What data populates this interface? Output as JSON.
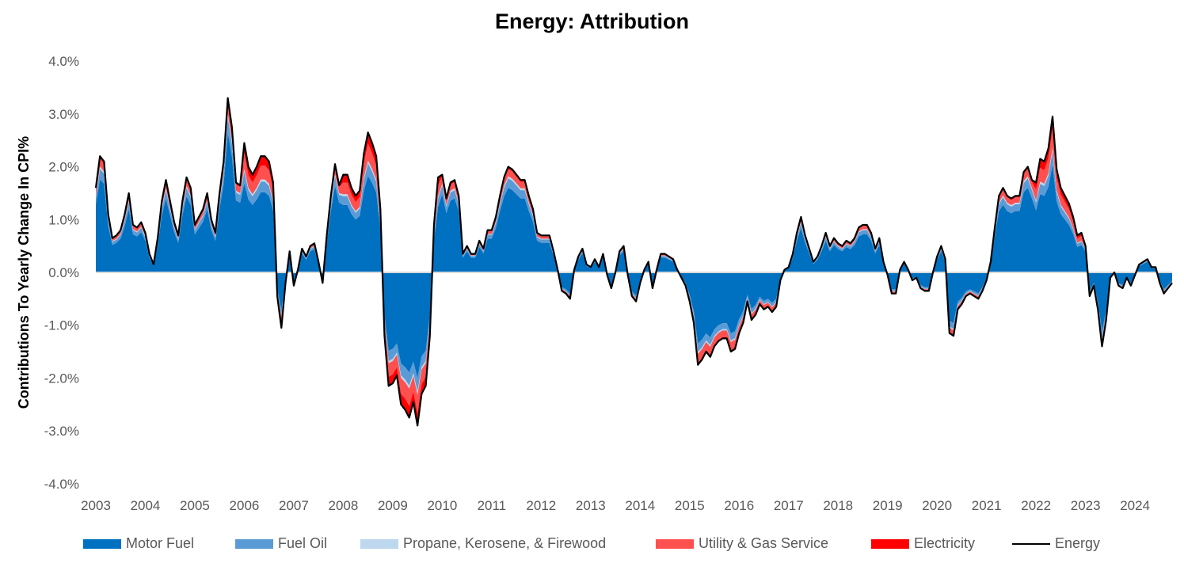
{
  "chart_data": {
    "type": "area",
    "title": "Energy: Attribution",
    "xlabel": "",
    "ylabel": "Contributions To Yearly Change In CPI%",
    "ylim": [
      -0.04,
      0.04
    ],
    "y_tick_labels": [
      "4.0%",
      "3.0%",
      "2.0%",
      "1.0%",
      "0.0%",
      "-1.0%",
      "-2.0%",
      "-3.0%",
      "-4.0%"
    ],
    "y_tick_values": [
      0.04,
      0.03,
      0.02,
      0.01,
      0.0,
      -0.01,
      -0.02,
      -0.03,
      -0.04
    ],
    "x_tick_labels": [
      "2003",
      "2004",
      "2005",
      "2006",
      "2007",
      "2008",
      "2009",
      "2010",
      "2011",
      "2012",
      "2013",
      "2014",
      "2015",
      "2016",
      "2017",
      "2018",
      "2019",
      "2020",
      "2021",
      "2022",
      "2023",
      "2024"
    ],
    "x_range": [
      "2003-01",
      "2024-10"
    ],
    "grid": false,
    "legend_position": "bottom",
    "energy_points": [
      [
        "2003-01",
        1.6
      ],
      [
        "2003-02",
        2.2
      ],
      [
        "2003-03",
        2.1
      ],
      [
        "2003-04",
        1.1
      ],
      [
        "2003-05",
        0.65
      ],
      [
        "2003-06",
        0.7
      ],
      [
        "2003-07",
        0.8
      ],
      [
        "2003-08",
        1.1
      ],
      [
        "2003-09",
        1.5
      ],
      [
        "2003-10",
        0.9
      ],
      [
        "2003-11",
        0.85
      ],
      [
        "2003-12",
        0.95
      ],
      [
        "2004-01",
        0.75
      ],
      [
        "2004-02",
        0.35
      ],
      [
        "2004-03",
        0.15
      ],
      [
        "2004-04",
        0.65
      ],
      [
        "2004-05",
        1.35
      ],
      [
        "2004-06",
        1.75
      ],
      [
        "2004-07",
        1.35
      ],
      [
        "2004-08",
        0.95
      ],
      [
        "2004-09",
        0.7
      ],
      [
        "2004-10",
        1.35
      ],
      [
        "2004-11",
        1.8
      ],
      [
        "2004-12",
        1.6
      ],
      [
        "2005-01",
        0.9
      ],
      [
        "2005-02",
        1.05
      ],
      [
        "2005-03",
        1.2
      ],
      [
        "2005-04",
        1.5
      ],
      [
        "2005-05",
        1.0
      ],
      [
        "2005-06",
        0.75
      ],
      [
        "2005-07",
        1.5
      ],
      [
        "2005-08",
        2.1
      ],
      [
        "2005-09",
        3.3
      ],
      [
        "2005-10",
        2.75
      ],
      [
        "2005-11",
        1.7
      ],
      [
        "2005-12",
        1.65
      ],
      [
        "2006-01",
        2.45
      ],
      [
        "2006-02",
        2.0
      ],
      [
        "2006-03",
        1.85
      ],
      [
        "2006-04",
        2.0
      ],
      [
        "2006-05",
        2.2
      ],
      [
        "2006-06",
        2.2
      ],
      [
        "2006-07",
        2.1
      ],
      [
        "2006-08",
        1.7
      ],
      [
        "2006-09",
        -0.45
      ],
      [
        "2006-10",
        -1.05
      ],
      [
        "2006-11",
        -0.2
      ],
      [
        "2006-12",
        0.4
      ],
      [
        "2007-01",
        -0.25
      ],
      [
        "2007-02",
        0.05
      ],
      [
        "2007-03",
        0.45
      ],
      [
        "2007-04",
        0.3
      ],
      [
        "2007-05",
        0.5
      ],
      [
        "2007-06",
        0.55
      ],
      [
        "2007-07",
        0.2
      ],
      [
        "2007-08",
        -0.2
      ],
      [
        "2007-09",
        0.7
      ],
      [
        "2007-10",
        1.45
      ],
      [
        "2007-11",
        2.05
      ],
      [
        "2007-12",
        1.65
      ],
      [
        "2008-01",
        1.85
      ],
      [
        "2008-02",
        1.85
      ],
      [
        "2008-03",
        1.6
      ],
      [
        "2008-04",
        1.45
      ],
      [
        "2008-05",
        1.55
      ],
      [
        "2008-06",
        2.25
      ],
      [
        "2008-07",
        2.65
      ],
      [
        "2008-08",
        2.45
      ],
      [
        "2008-09",
        2.2
      ],
      [
        "2008-10",
        1.2
      ],
      [
        "2008-11",
        -1.2
      ],
      [
        "2008-12",
        -2.15
      ],
      [
        "2009-01",
        -2.1
      ],
      [
        "2009-02",
        -1.95
      ],
      [
        "2009-03",
        -2.5
      ],
      [
        "2009-04",
        -2.6
      ],
      [
        "2009-05",
        -2.75
      ],
      [
        "2009-06",
        -2.45
      ],
      [
        "2009-07",
        -2.9
      ],
      [
        "2009-08",
        -2.3
      ],
      [
        "2009-09",
        -2.15
      ],
      [
        "2009-10",
        -1.2
      ],
      [
        "2009-11",
        0.9
      ],
      [
        "2009-12",
        1.8
      ],
      [
        "2010-01",
        1.85
      ],
      [
        "2010-02",
        1.4
      ],
      [
        "2010-03",
        1.7
      ],
      [
        "2010-04",
        1.75
      ],
      [
        "2010-05",
        1.45
      ],
      [
        "2010-06",
        0.35
      ],
      [
        "2010-07",
        0.5
      ],
      [
        "2010-08",
        0.35
      ],
      [
        "2010-09",
        0.35
      ],
      [
        "2010-10",
        0.6
      ],
      [
        "2010-11",
        0.45
      ],
      [
        "2010-12",
        0.8
      ],
      [
        "2011-01",
        0.8
      ],
      [
        "2011-02",
        1.05
      ],
      [
        "2011-03",
        1.45
      ],
      [
        "2011-04",
        1.8
      ],
      [
        "2011-05",
        2.0
      ],
      [
        "2011-06",
        1.95
      ],
      [
        "2011-07",
        1.85
      ],
      [
        "2011-08",
        1.75
      ],
      [
        "2011-09",
        1.75
      ],
      [
        "2011-10",
        1.45
      ],
      [
        "2011-11",
        1.2
      ],
      [
        "2011-12",
        0.75
      ],
      [
        "2012-01",
        0.7
      ],
      [
        "2012-02",
        0.7
      ],
      [
        "2012-03",
        0.7
      ],
      [
        "2012-04",
        0.4
      ],
      [
        "2012-05",
        0.05
      ],
      [
        "2012-06",
        -0.35
      ],
      [
        "2012-07",
        -0.4
      ],
      [
        "2012-08",
        -0.5
      ],
      [
        "2012-09",
        0.05
      ],
      [
        "2012-10",
        0.3
      ],
      [
        "2012-11",
        0.45
      ],
      [
        "2012-12",
        0.15
      ],
      [
        "2013-01",
        0.1
      ],
      [
        "2013-02",
        0.25
      ],
      [
        "2013-03",
        0.1
      ],
      [
        "2013-04",
        0.35
      ],
      [
        "2013-05",
        -0.05
      ],
      [
        "2013-06",
        -0.3
      ],
      [
        "2013-07",
        0.0
      ],
      [
        "2013-08",
        0.4
      ],
      [
        "2013-09",
        0.5
      ],
      [
        "2013-10",
        -0.05
      ],
      [
        "2013-11",
        -0.45
      ],
      [
        "2013-12",
        -0.55
      ],
      [
        "2014-01",
        -0.2
      ],
      [
        "2014-02",
        0.05
      ],
      [
        "2014-03",
        0.2
      ],
      [
        "2014-04",
        -0.3
      ],
      [
        "2014-05",
        0.05
      ],
      [
        "2014-06",
        0.35
      ],
      [
        "2014-07",
        0.35
      ],
      [
        "2014-08",
        0.3
      ],
      [
        "2014-09",
        0.25
      ],
      [
        "2014-10",
        0.05
      ],
      [
        "2014-11",
        -0.1
      ],
      [
        "2014-12",
        -0.25
      ],
      [
        "2015-01",
        -0.55
      ],
      [
        "2015-02",
        -0.95
      ],
      [
        "2015-03",
        -1.75
      ],
      [
        "2015-04",
        -1.65
      ],
      [
        "2015-05",
        -1.5
      ],
      [
        "2015-06",
        -1.6
      ],
      [
        "2015-07",
        -1.4
      ],
      [
        "2015-08",
        -1.3
      ],
      [
        "2015-09",
        -1.25
      ],
      [
        "2015-10",
        -1.25
      ],
      [
        "2015-11",
        -1.5
      ],
      [
        "2015-12",
        -1.45
      ],
      [
        "2016-01",
        -1.15
      ],
      [
        "2016-02",
        -0.95
      ],
      [
        "2016-03",
        -0.55
      ],
      [
        "2016-04",
        -0.9
      ],
      [
        "2016-05",
        -0.8
      ],
      [
        "2016-06",
        -0.6
      ],
      [
        "2016-07",
        -0.7
      ],
      [
        "2016-08",
        -0.65
      ],
      [
        "2016-09",
        -0.75
      ],
      [
        "2016-10",
        -0.65
      ],
      [
        "2016-11",
        -0.15
      ],
      [
        "2016-12",
        0.05
      ],
      [
        "2017-01",
        0.1
      ],
      [
        "2017-02",
        0.35
      ],
      [
        "2017-03",
        0.75
      ],
      [
        "2017-04",
        1.05
      ],
      [
        "2017-05",
        0.7
      ],
      [
        "2017-06",
        0.45
      ],
      [
        "2017-07",
        0.2
      ],
      [
        "2017-08",
        0.3
      ],
      [
        "2017-09",
        0.5
      ],
      [
        "2017-10",
        0.75
      ],
      [
        "2017-11",
        0.5
      ],
      [
        "2017-12",
        0.65
      ],
      [
        "2018-01",
        0.55
      ],
      [
        "2018-02",
        0.5
      ],
      [
        "2018-03",
        0.6
      ],
      [
        "2018-04",
        0.55
      ],
      [
        "2018-05",
        0.65
      ],
      [
        "2018-06",
        0.85
      ],
      [
        "2018-07",
        0.9
      ],
      [
        "2018-08",
        0.9
      ],
      [
        "2018-09",
        0.75
      ],
      [
        "2018-10",
        0.45
      ],
      [
        "2018-11",
        0.65
      ],
      [
        "2018-12",
        0.2
      ],
      [
        "2019-01",
        -0.05
      ],
      [
        "2019-02",
        -0.4
      ],
      [
        "2019-03",
        -0.4
      ],
      [
        "2019-04",
        0.05
      ],
      [
        "2019-05",
        0.2
      ],
      [
        "2019-06",
        0.05
      ],
      [
        "2019-07",
        -0.15
      ],
      [
        "2019-08",
        -0.1
      ],
      [
        "2019-09",
        -0.3
      ],
      [
        "2019-10",
        -0.35
      ],
      [
        "2019-11",
        -0.35
      ],
      [
        "2019-12",
        0.0
      ],
      [
        "2020-01",
        0.3
      ],
      [
        "2020-02",
        0.5
      ],
      [
        "2020-03",
        0.25
      ],
      [
        "2020-04",
        -1.15
      ],
      [
        "2020-05",
        -1.2
      ],
      [
        "2020-06",
        -0.7
      ],
      [
        "2020-07",
        -0.6
      ],
      [
        "2020-08",
        -0.45
      ],
      [
        "2020-09",
        -0.4
      ],
      [
        "2020-10",
        -0.45
      ],
      [
        "2020-11",
        -0.5
      ],
      [
        "2020-12",
        -0.35
      ],
      [
        "2021-01",
        -0.15
      ],
      [
        "2021-02",
        0.2
      ],
      [
        "2021-03",
        0.85
      ],
      [
        "2021-04",
        1.45
      ],
      [
        "2021-05",
        1.6
      ],
      [
        "2021-06",
        1.45
      ],
      [
        "2021-07",
        1.4
      ],
      [
        "2021-08",
        1.45
      ],
      [
        "2021-09",
        1.45
      ],
      [
        "2021-10",
        1.9
      ],
      [
        "2021-11",
        2.0
      ],
      [
        "2021-12",
        1.75
      ],
      [
        "2022-01",
        1.7
      ],
      [
        "2022-02",
        2.15
      ],
      [
        "2022-03",
        2.1
      ],
      [
        "2022-04",
        2.35
      ],
      [
        "2022-05",
        2.95
      ],
      [
        "2022-06",
        1.95
      ],
      [
        "2022-07",
        1.6
      ],
      [
        "2022-08",
        1.45
      ],
      [
        "2022-09",
        1.3
      ],
      [
        "2022-10",
        1.05
      ],
      [
        "2022-11",
        0.7
      ],
      [
        "2022-12",
        0.75
      ],
      [
        "2023-01",
        0.5
      ],
      [
        "2023-02",
        -0.45
      ],
      [
        "2023-03",
        -0.25
      ],
      [
        "2023-04",
        -0.7
      ],
      [
        "2023-05",
        -1.4
      ],
      [
        "2023-06",
        -0.9
      ],
      [
        "2023-07",
        -0.1
      ],
      [
        "2023-08",
        0.0
      ],
      [
        "2023-09",
        -0.25
      ],
      [
        "2023-10",
        -0.3
      ],
      [
        "2023-11",
        -0.1
      ],
      [
        "2023-12",
        -0.25
      ],
      [
        "2024-01",
        -0.05
      ],
      [
        "2024-02",
        0.15
      ],
      [
        "2024-03",
        0.2
      ],
      [
        "2024-04",
        0.25
      ],
      [
        "2024-05",
        0.1
      ],
      [
        "2024-06",
        0.1
      ],
      [
        "2024-07",
        -0.2
      ],
      [
        "2024-08",
        -0.4
      ],
      [
        "2024-09",
        -0.3
      ],
      [
        "2024-10",
        -0.2
      ]
    ],
    "series": [
      {
        "name": "Motor Fuel",
        "color": "#0070C0",
        "kind": "stacked-area"
      },
      {
        "name": "Fuel Oil",
        "color": "#5B9BD5",
        "kind": "stacked-area"
      },
      {
        "name": "Propane, Kerosene, & Firewood",
        "color": "#BDD7EE",
        "kind": "stacked-area"
      },
      {
        "name": "Utility & Gas Service",
        "color": "#FF5050",
        "kind": "stacked-area"
      },
      {
        "name": "Electricity",
        "color": "#FF0000",
        "kind": "stacked-area"
      },
      {
        "name": "Energy",
        "color": "#000000",
        "kind": "line"
      }
    ]
  }
}
